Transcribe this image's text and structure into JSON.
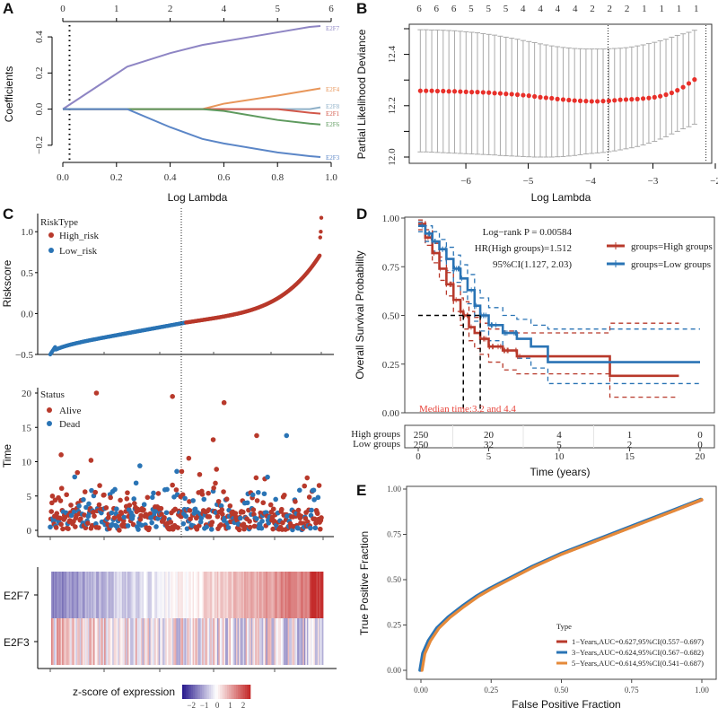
{
  "figure": {
    "panels": [
      "A",
      "B",
      "C",
      "D",
      "E"
    ]
  },
  "chart_data": [
    {
      "panel": "A",
      "type": "line",
      "title": "",
      "xlabel": "Log Lambda",
      "ylabel": "Coefficients",
      "xlim": [
        0,
        1
      ],
      "ylim": [
        -0.3,
        0.47
      ],
      "x_ticks": [
        "0.0",
        "0.2",
        "0.4",
        "0.6",
        "0.8",
        "1.0"
      ],
      "y_ticks": [
        "-0.2",
        "0.0",
        "0.2",
        "0.4"
      ],
      "top_ticks": [
        "0",
        "1",
        "2",
        "4",
        "5",
        "6"
      ],
      "top_tick_positions": [
        0.0,
        0.2,
        0.4,
        0.6,
        0.8,
        1.0
      ],
      "vline_x": 0.025,
      "x": [
        0.0,
        0.24,
        0.4,
        0.52,
        0.6,
        0.8,
        0.92,
        0.96
      ],
      "series": [
        {
          "name": "E2F7",
          "color": "#8e85c4",
          "values": [
            0.0,
            0.235,
            0.31,
            0.355,
            0.375,
            0.425,
            0.455,
            0.46
          ]
        },
        {
          "name": "E2F4",
          "color": "#e8965a",
          "values": [
            0.0,
            0.0,
            0.0,
            0.0,
            0.03,
            0.075,
            0.105,
            0.115
          ]
        },
        {
          "name": "E2F8",
          "color": "#8fb0c8",
          "values": [
            0.0,
            0.0,
            0.0,
            0.0,
            0.0,
            0.0,
            0.0,
            0.01
          ]
        },
        {
          "name": "E2F1",
          "color": "#d2584a",
          "values": [
            0.0,
            0.0,
            0.0,
            0.0,
            0.0,
            0.0,
            -0.02,
            -0.025
          ]
        },
        {
          "name": "E2F6",
          "color": "#5e9a5e",
          "values": [
            0.0,
            0.0,
            0.0,
            0.0,
            -0.01,
            -0.06,
            -0.08,
            -0.085
          ]
        },
        {
          "name": "E2F3",
          "color": "#5b86c7",
          "values": [
            0.0,
            0.0,
            -0.1,
            -0.165,
            -0.19,
            -0.24,
            -0.26,
            -0.265
          ]
        }
      ]
    },
    {
      "panel": "B",
      "type": "scatter",
      "title": "",
      "xlabel": "Log Lambda",
      "ylabel": "Partial Likelihood Deviance",
      "xlim": [
        -6.85,
        -2.0
      ],
      "ylim": [
        11.99,
        12.5
      ],
      "x_ticks": [
        "-6",
        "-5",
        "-4",
        "-3",
        "-2"
      ],
      "y_ticks": [
        "12.0",
        "12.2",
        "12.4"
      ],
      "top_ticks": [
        "6",
        "6",
        "6",
        "5",
        "5",
        "5",
        "4",
        "4",
        "4",
        "4",
        "2",
        "2",
        "2",
        "1",
        "1",
        "1",
        "1"
      ],
      "vlines": [
        -3.72,
        -2.15
      ],
      "x_start": -6.73,
      "x_step": 0.0916,
      "mean": [
        12.258,
        12.258,
        12.258,
        12.257,
        12.257,
        12.256,
        12.256,
        12.255,
        12.254,
        12.253,
        12.253,
        12.252,
        12.251,
        12.249,
        12.248,
        12.246,
        12.245,
        12.243,
        12.241,
        12.239,
        12.236,
        12.233,
        12.231,
        12.229,
        12.226,
        12.224,
        12.222,
        12.22,
        12.219,
        12.218,
        12.217,
        12.217,
        12.218,
        12.219,
        12.221,
        12.223,
        12.224,
        12.225,
        12.226,
        12.228,
        12.23,
        12.233,
        12.237,
        12.243,
        12.25,
        12.26,
        12.272,
        12.287,
        12.302
      ],
      "upper": [
        12.496,
        12.496,
        12.495,
        12.495,
        12.494,
        12.493,
        12.492,
        12.49,
        12.488,
        12.486,
        12.484,
        12.481,
        12.478,
        12.475,
        12.471,
        12.467,
        12.463,
        12.459,
        12.454,
        12.45,
        12.446,
        12.441,
        12.437,
        12.433,
        12.43,
        12.427,
        12.425,
        12.423,
        12.422,
        12.421,
        12.421,
        12.421,
        12.421,
        12.422,
        12.423,
        12.424,
        12.426,
        12.429,
        12.433,
        12.437,
        12.442,
        12.447,
        12.453,
        12.459,
        12.467,
        12.474,
        12.48,
        12.486,
        12.494
      ],
      "lower": [
        12.02,
        12.02,
        12.019,
        12.018,
        12.017,
        12.016,
        12.015,
        12.014,
        12.013,
        12.012,
        12.011,
        12.01,
        12.009,
        12.008,
        12.006,
        12.005,
        12.004,
        12.003,
        12.002,
        12.001,
        12.0,
        12.0,
        12.0,
        12.0,
        12.001,
        12.002,
        12.004,
        12.006,
        12.009,
        12.012,
        12.014,
        12.016,
        12.018,
        12.021,
        12.024,
        12.028,
        12.032,
        12.036,
        12.041,
        12.047,
        12.054,
        12.061,
        12.07,
        12.079,
        12.09,
        12.1,
        12.11,
        12.118,
        12.128
      ]
    },
    {
      "panel": "C-riskscore",
      "type": "scatter",
      "xlabel": "",
      "ylabel": "Riskscore",
      "ylim": [
        -0.5,
        1.2
      ],
      "y_ticks": [
        "-0.5",
        "0.0",
        "0.5",
        "1.0"
      ],
      "n_samples": 500,
      "cutoff_index": 250,
      "legend_title": "RiskType",
      "legend": [
        {
          "name": "High_risk",
          "color": "#b8392b"
        },
        {
          "name": "Low_risk",
          "color": "#2a74b5"
        }
      ]
    },
    {
      "panel": "C-time",
      "type": "scatter",
      "xlabel": "",
      "ylabel": "Time",
      "ylim": [
        0,
        20
      ],
      "y_ticks": [
        "0",
        "5",
        "10",
        "15",
        "20"
      ],
      "legend_title": "Status",
      "legend": [
        {
          "name": "Alive",
          "color": "#b8392b"
        },
        {
          "name": "Dead",
          "color": "#2a74b5"
        }
      ],
      "notable_points": [
        {
          "index": 85,
          "time": 20.0,
          "status": "Alive"
        },
        {
          "index": 225,
          "time": 19.5,
          "status": "Alive"
        },
        {
          "index": 320,
          "time": 18.6,
          "status": "Alive"
        },
        {
          "index": 380,
          "time": 13.8,
          "status": "Alive"
        },
        {
          "index": 435,
          "time": 13.8,
          "status": "Dead"
        },
        {
          "index": 300,
          "time": 13.2,
          "status": "Alive"
        },
        {
          "index": 20,
          "time": 11.0,
          "status": "Alive"
        },
        {
          "index": 255,
          "time": 10.5,
          "status": "Alive"
        },
        {
          "index": 75,
          "time": 10.2,
          "status": "Alive"
        },
        {
          "index": 165,
          "time": 9.4,
          "status": "Dead"
        }
      ]
    },
    {
      "panel": "C-heatmap",
      "type": "heatmap",
      "rows": [
        "E2F7",
        "E2F3"
      ],
      "colorbar_title": "z-score of expression",
      "colorbar_ticks": [
        "-2",
        "-1",
        "0",
        "1",
        "2"
      ],
      "colorbar_range": [
        -2.5,
        2.5
      ],
      "colors": {
        "low": "#2b1d8f",
        "mid": "#ffffff",
        "high": "#c42a2a"
      }
    },
    {
      "panel": "D",
      "type": "line",
      "xlabel": "Time (years)",
      "ylabel": "Overall Survival Probability",
      "xlim": [
        0,
        20
      ],
      "ylim": [
        0,
        1
      ],
      "x_ticks": [
        "0",
        "5",
        "10",
        "15",
        "20"
      ],
      "y_ticks": [
        "0.00",
        "0.25",
        "0.50",
        "0.75",
        "1.00"
      ],
      "annotations": [
        "Log-rank P = 0.00584",
        "HR(High groups)=1.512",
        "95%CI(1.127, 2.03)"
      ],
      "median_text": "Median time:3.2 and 4.4",
      "medians": [
        3.2,
        4.4
      ],
      "series": [
        {
          "name": "groups=High groups",
          "color": "#b8392b",
          "x": [
            0,
            0.5,
            1,
            1.5,
            2,
            2.5,
            3,
            3.2,
            3.6,
            4,
            4.4,
            5,
            6,
            7,
            13.6,
            13.6,
            18.5
          ],
          "y": [
            0.97,
            0.9,
            0.82,
            0.74,
            0.66,
            0.58,
            0.52,
            0.5,
            0.44,
            0.41,
            0.38,
            0.34,
            0.32,
            0.29,
            0.29,
            0.19,
            0.19
          ],
          "upper": [
            0.99,
            0.94,
            0.87,
            0.8,
            0.72,
            0.65,
            0.59,
            0.57,
            0.52,
            0.49,
            0.46,
            0.43,
            0.42,
            0.41,
            0.46,
            0.46,
            0.46
          ],
          "lower": [
            0.94,
            0.86,
            0.77,
            0.68,
            0.6,
            0.52,
            0.45,
            0.43,
            0.37,
            0.33,
            0.3,
            0.26,
            0.22,
            0.2,
            0.2,
            0.08,
            0.08
          ]
        },
        {
          "name": "groups=Low groups",
          "color": "#2a74b5",
          "x": [
            0,
            0.5,
            1,
            1.5,
            2,
            2.5,
            3,
            3.5,
            4,
            4.4,
            5,
            6,
            7,
            8,
            9.2,
            20
          ],
          "y": [
            0.96,
            0.92,
            0.88,
            0.84,
            0.79,
            0.74,
            0.69,
            0.63,
            0.55,
            0.5,
            0.45,
            0.41,
            0.38,
            0.34,
            0.26,
            0.26
          ],
          "upper": [
            0.98,
            0.96,
            0.93,
            0.89,
            0.85,
            0.81,
            0.76,
            0.71,
            0.63,
            0.59,
            0.54,
            0.5,
            0.48,
            0.45,
            0.43,
            0.43
          ],
          "lower": [
            0.93,
            0.88,
            0.83,
            0.78,
            0.73,
            0.67,
            0.62,
            0.56,
            0.47,
            0.42,
            0.37,
            0.32,
            0.28,
            0.23,
            0.15,
            0.15
          ]
        }
      ],
      "risk_table": {
        "rows": [
          {
            "group": "High groups",
            "values": [
              "250",
              "20",
              "4",
              "1",
              "0"
            ]
          },
          {
            "group": "Low groups",
            "values": [
              "250",
              "32",
              "5",
              "2",
              "0"
            ]
          }
        ],
        "times": [
          0,
          5,
          10,
          15,
          20
        ]
      }
    },
    {
      "panel": "E",
      "type": "line",
      "xlabel": "False Positive Fraction",
      "ylabel": "True Positive Fraction",
      "xlim": [
        0,
        1
      ],
      "ylim": [
        0,
        1
      ],
      "x_ticks": [
        "0.00",
        "0.25",
        "0.50",
        "0.75",
        "1.00"
      ],
      "y_ticks": [
        "0.00",
        "0.25",
        "0.50",
        "0.75",
        "1.00"
      ],
      "legend_title": "Type",
      "legend_position": "bottom-right",
      "series": [
        {
          "name": "1-Years,AUC=0.627,95%CI(0.557-0.697)",
          "color": "#b8392b",
          "auc": 0.627
        },
        {
          "name": "3-Years,AUC=0.624,95%CI(0.567-0.682)",
          "color": "#2a74b5",
          "auc": 0.624
        },
        {
          "name": "5-Years,AUC=0.614,95%CI(0.541-0.687)",
          "color": "#e58a3a",
          "auc": 0.614
        }
      ],
      "curve_x": [
        0.0,
        0.01,
        0.03,
        0.06,
        0.1,
        0.15,
        0.2,
        0.25,
        0.3,
        0.4,
        0.5,
        0.6,
        0.7,
        0.8,
        0.9,
        1.0
      ],
      "curve_y": [
        0.0,
        0.09,
        0.16,
        0.23,
        0.29,
        0.35,
        0.405,
        0.45,
        0.49,
        0.57,
        0.64,
        0.7,
        0.76,
        0.82,
        0.88,
        0.94
      ]
    }
  ]
}
